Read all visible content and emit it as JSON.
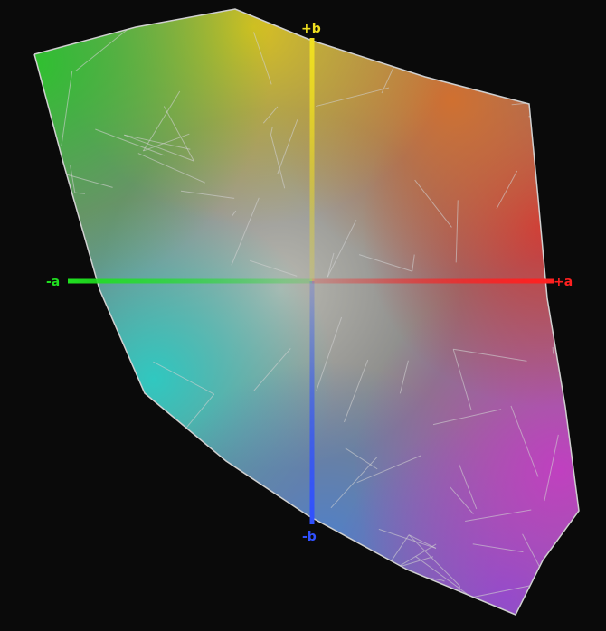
{
  "axes": {
    "plus_b": {
      "label": "+b",
      "color": "#f0e020"
    },
    "minus_b": {
      "label": "-b",
      "color": "#3050ff"
    },
    "plus_a": {
      "label": "+a",
      "color": "#ff2020"
    },
    "minus_a": {
      "label": "-a",
      "color": "#20e020"
    }
  },
  "colors": {
    "background": "#0a0a0a",
    "wireframe": "#d0d0d0"
  }
}
